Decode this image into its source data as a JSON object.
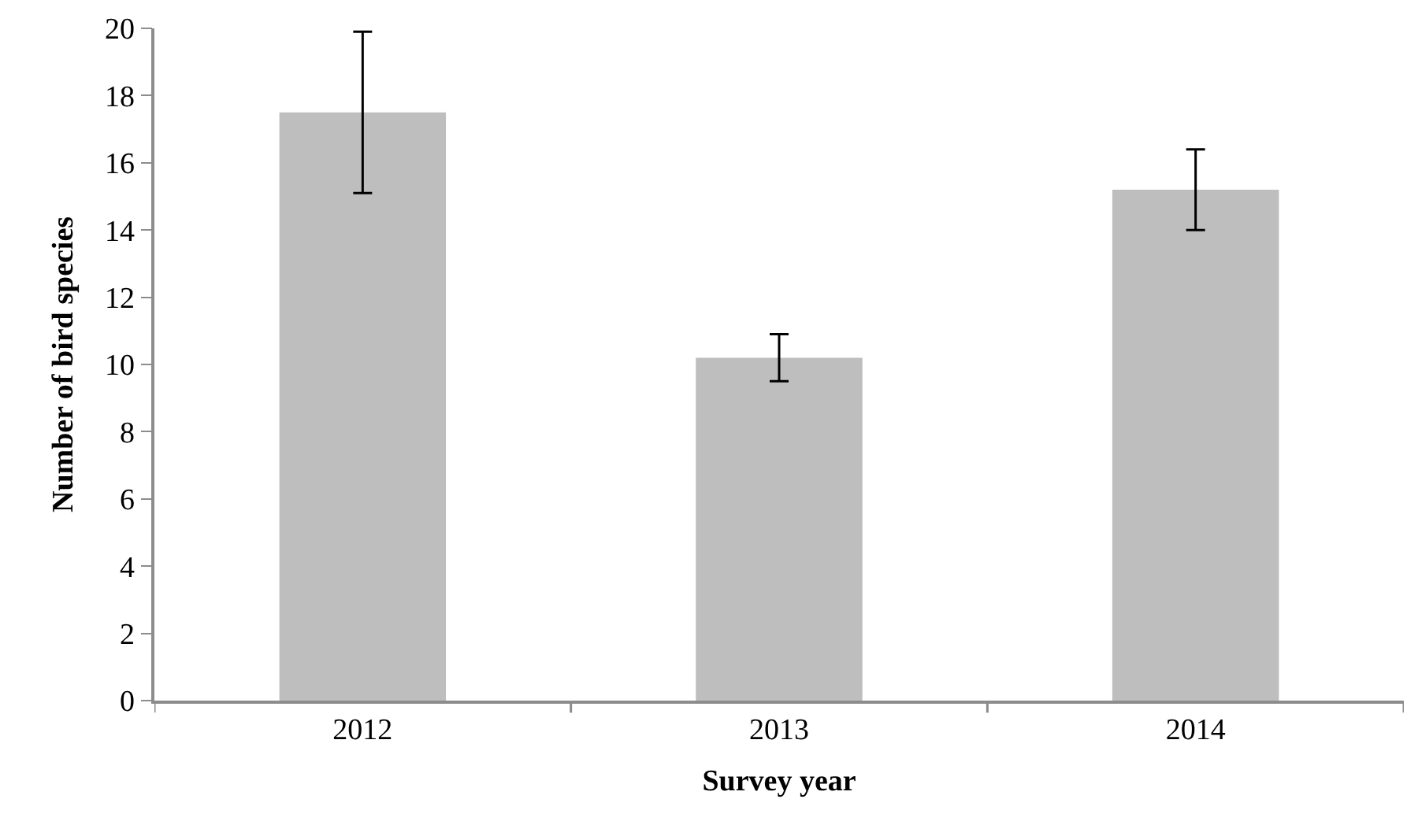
{
  "chart_data": {
    "type": "bar",
    "xlabel": "Survey year",
    "ylabel": "Number of bird species",
    "categories": [
      "2012",
      "2013",
      "2014"
    ],
    "series": [
      {
        "color": "#bebebe",
        "values": [
          17.5,
          10.2,
          15.2
        ],
        "errors": [
          2.4,
          0.7,
          1.2
        ]
      }
    ],
    "ylim": [
      0,
      20
    ],
    "yticks": [
      0,
      2,
      4,
      6,
      8,
      10,
      12,
      14,
      16,
      18,
      20
    ]
  }
}
